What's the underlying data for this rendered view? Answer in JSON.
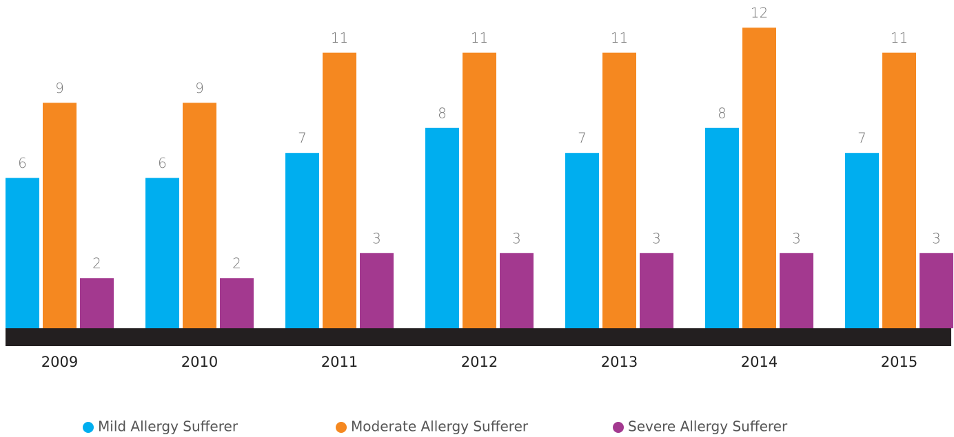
{
  "chart_data": {
    "type": "bar",
    "categories": [
      "2009",
      "2010",
      "2011",
      "2012",
      "2013",
      "2014",
      "2015"
    ],
    "series": [
      {
        "name": "Mild Allergy Sufferer",
        "color": "#00aeef",
        "values": [
          6,
          6,
          7,
          8,
          7,
          8,
          7
        ]
      },
      {
        "name": "Moderate Allergy Sufferer",
        "color": "#f58820",
        "values": [
          9,
          9,
          11,
          11,
          11,
          12,
          11
        ]
      },
      {
        "name": "Severe Allergy Sufferer",
        "color": "#a3398f",
        "values": [
          2,
          2,
          3,
          3,
          3,
          3,
          3
        ]
      }
    ],
    "legend": "bottom"
  }
}
